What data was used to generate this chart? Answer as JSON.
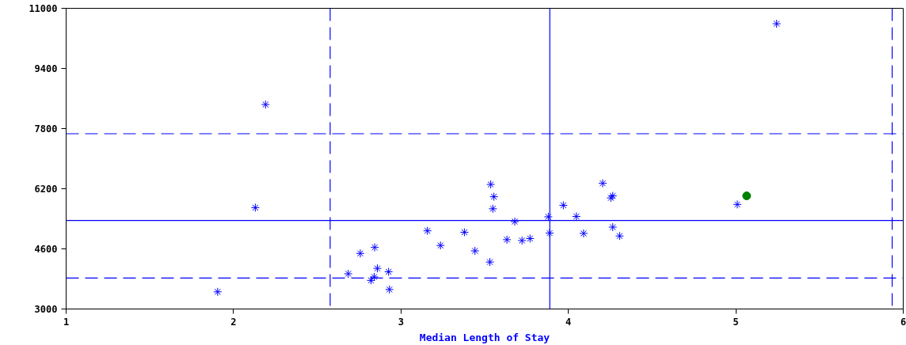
{
  "chart_data": {
    "type": "scatter",
    "xlabel": "Median Length of Stay",
    "xlim": [
      1,
      6
    ],
    "xticks": [
      1,
      2,
      3,
      4,
      5,
      6
    ],
    "ylim": [
      3000,
      11000
    ],
    "yticks": [
      3000,
      4600,
      6200,
      7800,
      9400,
      11000
    ],
    "grid": false,
    "series": [
      {
        "color": "#0000ff",
        "marker": "cross",
        "x": [
          1.905,
          2.13,
          2.191,
          2.685,
          2.757,
          2.843,
          2.821,
          2.84,
          2.859,
          2.926,
          2.931,
          3.158,
          3.236,
          3.379,
          3.442,
          3.531,
          3.536,
          3.555,
          3.549,
          3.633,
          3.68,
          3.723,
          3.771,
          3.88,
          3.888,
          3.97,
          4.048,
          4.091,
          4.205,
          4.254,
          4.265,
          4.265,
          4.306,
          5.009,
          5.244
        ],
        "values": [
          3457,
          5697,
          8440,
          3937,
          4479,
          4639,
          3761,
          3853,
          4081,
          3990,
          3519,
          5080,
          4691,
          5041,
          4547,
          4250,
          6314,
          5988,
          5667,
          4845,
          5325,
          4822,
          4874,
          5453,
          5019,
          5759,
          5462,
          5011,
          6344,
          5956,
          6010,
          5178,
          4943,
          5782,
          10589
        ]
      },
      {
        "color": "#008000",
        "marker": "circle",
        "x": [
          5.065
        ],
        "values": [
          6010
        ]
      }
    ],
    "ref_lines": [
      {
        "axis": "y",
        "value": 7663,
        "color": "#0000ff",
        "line_style": "dashed"
      },
      {
        "axis": "y",
        "value": 5354,
        "color": "#0000ff",
        "line_style": "solid"
      },
      {
        "axis": "y",
        "value": 3823,
        "color": "#0000ff",
        "line_style": "dashed"
      },
      {
        "axis": "x",
        "value": 2.577,
        "color": "#0000ff",
        "line_style": "dashed"
      },
      {
        "axis": "x",
        "value": 3.889,
        "color": "#0000ff",
        "line_style": "solid"
      },
      {
        "axis": "x",
        "value": 5.934,
        "color": "#0000ff",
        "line_style": "dashed"
      }
    ]
  }
}
